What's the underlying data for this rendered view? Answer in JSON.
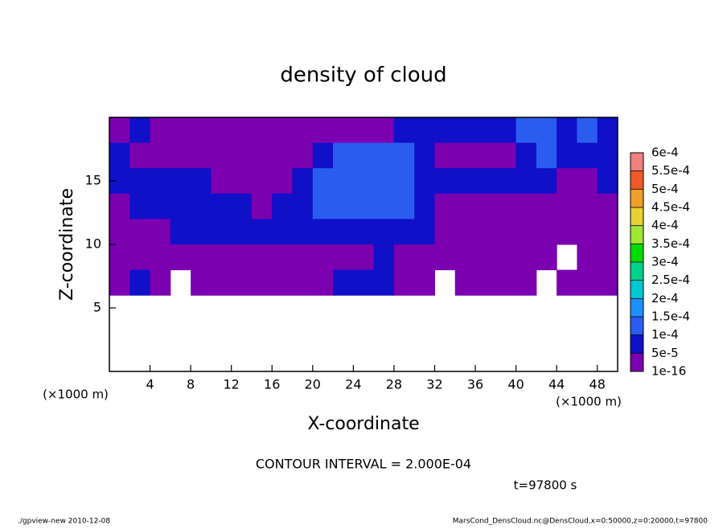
{
  "chart_data": {
    "type": "heatmap",
    "title": "density of cloud",
    "x_label": "X-coordinate",
    "y_label": "Z-coordinate",
    "x_unit": "(×1000 m)",
    "note": "CONTOUR INTERVAL = 2.000E-04",
    "time_label": "t=97800 s",
    "footer_left": "./gpview-new  2010-12-08",
    "footer_right": "MarsCond_DensCloud.nc@DensCloud,x=0:50000,z=0:20000,t=97800",
    "xlim": [
      0,
      50
    ],
    "ylim": [
      0,
      20
    ],
    "xticks": [
      4,
      8,
      12,
      16,
      20,
      24,
      28,
      32,
      36,
      40,
      44,
      48
    ],
    "yticks": [
      5,
      10,
      15
    ],
    "x": [
      1,
      3,
      5,
      7,
      9,
      11,
      13,
      15,
      17,
      19,
      21,
      23,
      25,
      27,
      29,
      31,
      33,
      35,
      37,
      39,
      41,
      43,
      45,
      47,
      49
    ],
    "y": [
      19,
      17,
      15,
      13,
      11,
      9,
      7,
      5,
      3,
      1
    ],
    "z": [
      [
        2e-05,
        7e-05,
        2e-05,
        2e-05,
        2e-05,
        2e-05,
        2e-05,
        2e-05,
        2e-05,
        2e-05,
        2e-05,
        2e-05,
        2e-05,
        2e-05,
        7e-05,
        7e-05,
        7e-05,
        7e-05,
        7e-05,
        7e-05,
        0.00012,
        0.00012,
        7e-05,
        0.00012,
        7e-05
      ],
      [
        7e-05,
        2e-05,
        2e-05,
        2e-05,
        2e-05,
        2e-05,
        2e-05,
        2e-05,
        2e-05,
        2e-05,
        7e-05,
        0.00012,
        0.00012,
        0.00012,
        0.00012,
        7e-05,
        2e-05,
        2e-05,
        2e-05,
        2e-05,
        7e-05,
        0.00012,
        7e-05,
        7e-05,
        7e-05
      ],
      [
        7e-05,
        7e-05,
        7e-05,
        7e-05,
        7e-05,
        2e-05,
        2e-05,
        2e-05,
        2e-05,
        7e-05,
        0.00012,
        0.00012,
        0.00012,
        0.00012,
        0.00012,
        7e-05,
        7e-05,
        7e-05,
        7e-05,
        7e-05,
        7e-05,
        7e-05,
        2e-05,
        2e-05,
        7e-05
      ],
      [
        2e-05,
        7e-05,
        7e-05,
        7e-05,
        7e-05,
        7e-05,
        7e-05,
        2e-05,
        7e-05,
        7e-05,
        0.00012,
        0.00012,
        0.00012,
        0.00012,
        0.00012,
        7e-05,
        2e-05,
        2e-05,
        2e-05,
        2e-05,
        2e-05,
        2e-05,
        2e-05,
        2e-05,
        2e-05
      ],
      [
        2e-05,
        2e-05,
        2e-05,
        7e-05,
        7e-05,
        7e-05,
        7e-05,
        7e-05,
        7e-05,
        7e-05,
        7e-05,
        7e-05,
        7e-05,
        7e-05,
        7e-05,
        7e-05,
        2e-05,
        2e-05,
        2e-05,
        2e-05,
        2e-05,
        2e-05,
        2e-05,
        2e-05,
        2e-05
      ],
      [
        2e-05,
        2e-05,
        2e-05,
        2e-05,
        2e-05,
        2e-05,
        2e-05,
        2e-05,
        2e-05,
        2e-05,
        2e-05,
        2e-05,
        2e-05,
        7e-05,
        2e-05,
        2e-05,
        2e-05,
        2e-05,
        2e-05,
        2e-05,
        2e-05,
        2e-05,
        null,
        2e-05,
        2e-05
      ],
      [
        2e-05,
        7e-05,
        2e-05,
        null,
        2e-05,
        2e-05,
        2e-05,
        2e-05,
        2e-05,
        2e-05,
        2e-05,
        7e-05,
        7e-05,
        7e-05,
        2e-05,
        2e-05,
        null,
        2e-05,
        2e-05,
        2e-05,
        2e-05,
        null,
        2e-05,
        2e-05,
        2e-05
      ],
      [
        null,
        null,
        null,
        null,
        null,
        null,
        null,
        null,
        null,
        null,
        null,
        null,
        null,
        null,
        null,
        null,
        null,
        null,
        null,
        null,
        null,
        null,
        null,
        null,
        null
      ],
      [
        null,
        null,
        null,
        null,
        null,
        null,
        null,
        null,
        null,
        null,
        null,
        null,
        null,
        null,
        null,
        null,
        null,
        null,
        null,
        null,
        null,
        null,
        null,
        null,
        null
      ],
      [
        null,
        null,
        null,
        null,
        null,
        null,
        null,
        null,
        null,
        null,
        null,
        null,
        null,
        null,
        null,
        null,
        null,
        null,
        null,
        null,
        null,
        null,
        null,
        null,
        null
      ]
    ],
    "levels": [
      1e-16,
      {
        "value": 5e-05,
        "label": "5e-5"
      },
      {
        "value": 0.0001,
        "label": "1e-4"
      },
      {
        "value": 0.00015,
        "label": "1.5e-4"
      },
      {
        "value": 0.0002,
        "label": "2e-4"
      },
      {
        "value": 0.00025,
        "label": "2.5e-4"
      },
      {
        "value": 0.0003,
        "label": "3e-4"
      },
      {
        "value": 0.00035,
        "label": "3.5e-4"
      },
      {
        "value": 0.0004,
        "label": "4e-4"
      },
      {
        "value": 0.00045,
        "label": "4.5e-4"
      },
      {
        "value": 0.0005,
        "label": "5e-4"
      },
      {
        "value": 0.00055,
        "label": "5.5e-4"
      },
      {
        "value": 0.0006,
        "label": "6e-4"
      }
    ],
    "colors": [
      "#7a00b0",
      "#1010c8",
      "#2a5cf0",
      "#1e90ff",
      "#00c8d2",
      "#00d28c",
      "#00dc00",
      "#a0e632",
      "#e6d232",
      "#f0a028",
      "#f05a28",
      "#f08080"
    ]
  }
}
